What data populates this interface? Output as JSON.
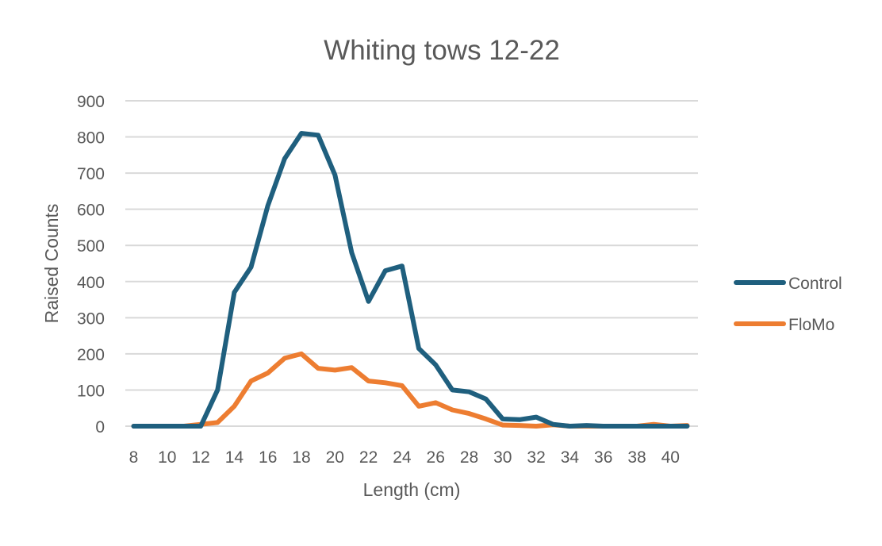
{
  "chart_data": {
    "type": "line",
    "title": "Whiting tows 12-22",
    "xlabel": "Length (cm)",
    "ylabel": "Raised Counts",
    "x": [
      8,
      9,
      10,
      11,
      12,
      13,
      14,
      15,
      16,
      17,
      18,
      19,
      20,
      21,
      22,
      23,
      24,
      25,
      26,
      27,
      28,
      29,
      30,
      31,
      32,
      33,
      34,
      35,
      36,
      37,
      38,
      39,
      40,
      41
    ],
    "x_ticks": [
      "8",
      "10",
      "12",
      "14",
      "16",
      "18",
      "20",
      "22",
      "24",
      "26",
      "28",
      "30",
      "32",
      "34",
      "36",
      "38",
      "40"
    ],
    "y_ticks": [
      "0",
      "100",
      "200",
      "300",
      "400",
      "500",
      "600",
      "700",
      "800",
      "900"
    ],
    "ylim": [
      0,
      900
    ],
    "grid": true,
    "legend_position": "right",
    "series": [
      {
        "name": "Control",
        "color": "#1f5f7e",
        "values": [
          0,
          0,
          0,
          0,
          0,
          100,
          370,
          440,
          610,
          740,
          810,
          805,
          695,
          480,
          345,
          430,
          443,
          215,
          170,
          100,
          95,
          75,
          20,
          18,
          25,
          5,
          0,
          2,
          0,
          0,
          0,
          0,
          0,
          0
        ]
      },
      {
        "name": "FloMo",
        "color": "#ed7d31",
        "values": [
          0,
          0,
          0,
          0,
          5,
          10,
          55,
          125,
          147,
          188,
          200,
          160,
          155,
          162,
          125,
          120,
          112,
          55,
          65,
          45,
          35,
          20,
          3,
          2,
          0,
          4,
          0,
          0,
          0,
          0,
          0,
          5,
          0,
          2
        ]
      }
    ]
  }
}
